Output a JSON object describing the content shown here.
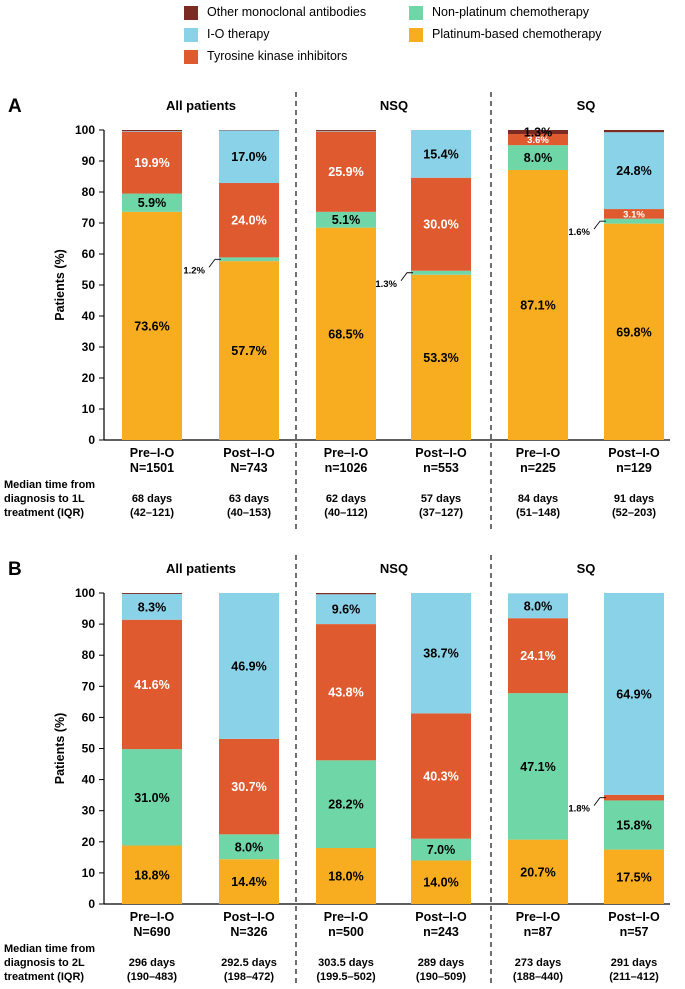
{
  "legend": [
    {
      "key": "other_mab",
      "label": "Other monoclonal antibodies",
      "color": "#7b2b22"
    },
    {
      "key": "non_platinum",
      "label": "Non-platinum chemotherapy",
      "color": "#6fd6a8"
    },
    {
      "key": "io",
      "label": "I-O therapy",
      "color": "#8ad2e8"
    },
    {
      "key": "platinum",
      "label": "Platinum-based chemotherapy",
      "color": "#f8ad21"
    },
    {
      "key": "tki",
      "label": "Tyrosine kinase inhibitors",
      "color": "#e05a30"
    }
  ],
  "chart_data": [
    {
      "type": "stacked-bar",
      "panel_label": "A",
      "ylabel": "Patients (%)",
      "ylim": [
        0,
        100
      ],
      "yticks": [
        0,
        10,
        20,
        30,
        40,
        50,
        60,
        70,
        80,
        90,
        100
      ],
      "group_titles": [
        "All patients",
        "NSQ",
        "SQ"
      ],
      "footer_label": [
        "Median time from",
        "diagnosis to 1L",
        "treatment (IQR)"
      ],
      "bars": [
        {
          "label": "Pre–I-O",
          "n": "N=1501",
          "days": "68 days",
          "iqr": "(42–121)",
          "segments": [
            {
              "series": "platinum",
              "value": 73.6,
              "label": "73.6%"
            },
            {
              "series": "non_platinum",
              "value": 5.9,
              "label": "5.9%"
            },
            {
              "series": "tki",
              "value": 19.9,
              "label": "19.9%"
            },
            {
              "series": "io",
              "value": 0.2,
              "label": ""
            },
            {
              "series": "other_mab",
              "value": 0.4,
              "label": ""
            }
          ]
        },
        {
          "label": "Post–I-O",
          "n": "N=743",
          "days": "63 days",
          "iqr": "(40–153)",
          "segments": [
            {
              "series": "platinum",
              "value": 57.7,
              "label": "57.7%"
            },
            {
              "series": "non_platinum",
              "value": 1.2,
              "label": "1.2%",
              "callout": true
            },
            {
              "series": "tki",
              "value": 24.0,
              "label": "24.0%"
            },
            {
              "series": "io",
              "value": 17.0,
              "label": "17.0%"
            },
            {
              "series": "other_mab",
              "value": 0.1,
              "label": ""
            }
          ]
        },
        {
          "label": "Pre–I-O",
          "n": "n=1026",
          "days": "62 days",
          "iqr": "(40–112)",
          "segments": [
            {
              "series": "platinum",
              "value": 68.5,
              "label": "68.5%"
            },
            {
              "series": "non_platinum",
              "value": 5.1,
              "label": "5.1%"
            },
            {
              "series": "tki",
              "value": 25.9,
              "label": "25.9%"
            },
            {
              "series": "io",
              "value": 0.2,
              "label": ""
            },
            {
              "series": "other_mab",
              "value": 0.3,
              "label": ""
            }
          ]
        },
        {
          "label": "Post–I-O",
          "n": "n=553",
          "days": "57 days",
          "iqr": "(37–127)",
          "segments": [
            {
              "series": "platinum",
              "value": 53.3,
              "label": "53.3%"
            },
            {
              "series": "non_platinum",
              "value": 1.3,
              "label": "1.3%",
              "callout": true
            },
            {
              "series": "tki",
              "value": 30.0,
              "label": "30.0%"
            },
            {
              "series": "io",
              "value": 15.4,
              "label": "15.4%"
            }
          ]
        },
        {
          "label": "Pre–I-O",
          "n": "n=225",
          "days": "84 days",
          "iqr": "(51–148)",
          "segments": [
            {
              "series": "platinum",
              "value": 87.1,
              "label": "87.1%"
            },
            {
              "series": "non_platinum",
              "value": 8.0,
              "label": "8.0%"
            },
            {
              "series": "tki",
              "value": 3.6,
              "label": "3.6%",
              "small": true
            },
            {
              "series": "other_mab",
              "value": 1.3,
              "label": "1.3%",
              "callout": true
            }
          ]
        },
        {
          "label": "Post–I-O",
          "n": "n=129",
          "days": "91 days",
          "iqr": "(52–203)",
          "segments": [
            {
              "series": "platinum",
              "value": 69.8,
              "label": "69.8%"
            },
            {
              "series": "non_platinum",
              "value": 1.6,
              "label": "1.6%",
              "callout": true
            },
            {
              "series": "tki",
              "value": 3.1,
              "label": "3.1%",
              "small": true
            },
            {
              "series": "io",
              "value": 24.8,
              "label": "24.8%"
            },
            {
              "series": "other_mab",
              "value": 0.7,
              "label": ""
            }
          ]
        }
      ]
    },
    {
      "type": "stacked-bar",
      "panel_label": "B",
      "ylabel": "Patients (%)",
      "ylim": [
        0,
        100
      ],
      "yticks": [
        0,
        10,
        20,
        30,
        40,
        50,
        60,
        70,
        80,
        90,
        100
      ],
      "group_titles": [
        "All patients",
        "NSQ",
        "SQ"
      ],
      "footer_label": [
        "Median time from",
        "diagnosis to 2L",
        "treatment (IQR)"
      ],
      "bars": [
        {
          "label": "Pre–I-O",
          "n": "N=690",
          "days": "296 days",
          "iqr": "(190–483)",
          "segments": [
            {
              "series": "platinum",
              "value": 18.8,
              "label": "18.8%"
            },
            {
              "series": "non_platinum",
              "value": 31.0,
              "label": "31.0%"
            },
            {
              "series": "tki",
              "value": 41.6,
              "label": "41.6%"
            },
            {
              "series": "io",
              "value": 8.3,
              "label": "8.3%"
            },
            {
              "series": "other_mab",
              "value": 0.3,
              "label": ""
            }
          ]
        },
        {
          "label": "Post–I-O",
          "n": "N=326",
          "days": "292.5 days",
          "iqr": "(198–472)",
          "segments": [
            {
              "series": "platinum",
              "value": 14.4,
              "label": "14.4%"
            },
            {
              "series": "non_platinum",
              "value": 8.0,
              "label": "8.0%"
            },
            {
              "series": "tki",
              "value": 30.7,
              "label": "30.7%"
            },
            {
              "series": "io",
              "value": 46.9,
              "label": "46.9%"
            }
          ]
        },
        {
          "label": "Pre–I-O",
          "n": "n=500",
          "days": "303.5 days",
          "iqr": "(199.5–502)",
          "segments": [
            {
              "series": "platinum",
              "value": 18.0,
              "label": "18.0%"
            },
            {
              "series": "non_platinum",
              "value": 28.2,
              "label": "28.2%"
            },
            {
              "series": "tki",
              "value": 43.8,
              "label": "43.8%"
            },
            {
              "series": "io",
              "value": 9.6,
              "label": "9.6%"
            },
            {
              "series": "other_mab",
              "value": 0.4,
              "label": ""
            }
          ]
        },
        {
          "label": "Post–I-O",
          "n": "n=243",
          "days": "289 days",
          "iqr": "(190–509)",
          "segments": [
            {
              "series": "platinum",
              "value": 14.0,
              "label": "14.0%"
            },
            {
              "series": "non_platinum",
              "value": 7.0,
              "label": "7.0%"
            },
            {
              "series": "tki",
              "value": 40.3,
              "label": "40.3%"
            },
            {
              "series": "io",
              "value": 38.7,
              "label": "38.7%"
            }
          ]
        },
        {
          "label": "Pre–I-O",
          "n": "n=87",
          "days": "273 days",
          "iqr": "(188–440)",
          "segments": [
            {
              "series": "platinum",
              "value": 20.7,
              "label": "20.7%"
            },
            {
              "series": "non_platinum",
              "value": 47.1,
              "label": "47.1%"
            },
            {
              "series": "tki",
              "value": 24.1,
              "label": "24.1%"
            },
            {
              "series": "io",
              "value": 8.0,
              "label": "8.0%"
            }
          ]
        },
        {
          "label": "Post–I-O",
          "n": "n=57",
          "days": "291 days",
          "iqr": "(211–412)",
          "segments": [
            {
              "series": "platinum",
              "value": 17.5,
              "label": "17.5%"
            },
            {
              "series": "non_platinum",
              "value": 15.8,
              "label": "15.8%"
            },
            {
              "series": "tki",
              "value": 1.8,
              "label": "1.8%",
              "callout": true
            },
            {
              "series": "io",
              "value": 64.9,
              "label": "64.9%"
            }
          ]
        }
      ]
    }
  ]
}
